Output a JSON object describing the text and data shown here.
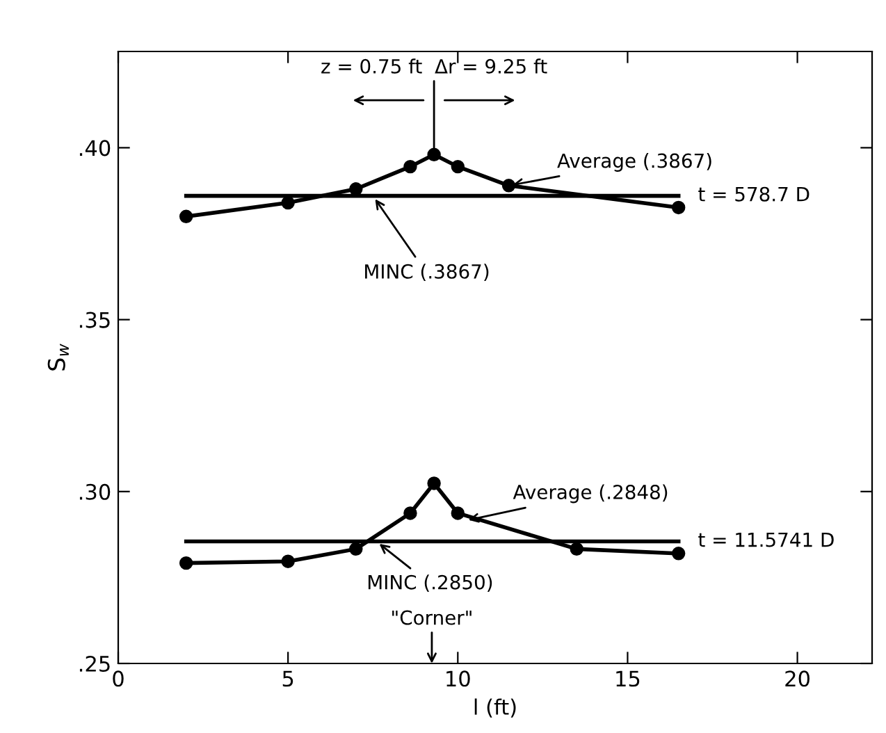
{
  "chart_data": {
    "type": "line",
    "xlabel": "l (ft)",
    "ylabel": "S$_{w}$",
    "xlim": [
      0,
      22.2
    ],
    "ylim": [
      0.25,
      0.428
    ],
    "xticks": [
      0,
      5,
      10,
      15,
      20
    ],
    "yticks": [
      {
        "value": 0.25,
        "label": ".25"
      },
      {
        "value": 0.3,
        "label": ".30"
      },
      {
        "value": 0.35,
        "label": ".35"
      },
      {
        "value": 0.4,
        "label": ".40"
      }
    ],
    "marker": "circle",
    "grid": false,
    "series": [
      {
        "color": "#000000",
        "x": [
          2.0,
          5.0,
          7.0,
          8.6,
          9.3,
          10.0,
          11.5,
          16.5
        ],
        "values": [
          0.38,
          0.384,
          0.388,
          0.3945,
          0.398,
          0.3945,
          0.389,
          0.3826
        ]
      },
      {
        "type": "line",
        "marker": "none",
        "color": "#000000",
        "x": [
          2.0,
          16.5
        ],
        "values": [
          0.386,
          0.386
        ]
      },
      {
        "color": "#000000",
        "x": [
          2.0,
          5.0,
          7.0,
          8.6,
          9.3,
          10.0,
          13.5,
          16.5
        ],
        "values": [
          0.2792,
          0.2797,
          0.2833,
          0.2937,
          0.3024,
          0.2937,
          0.2833,
          0.282
        ]
      },
      {
        "type": "line",
        "marker": "none",
        "color": "#000000",
        "x": [
          2.0,
          16.5
        ],
        "values": [
          0.2855,
          0.2855
        ]
      }
    ],
    "annotations": [
      {
        "text": "Average (.3867)",
        "x": 11.5,
        "y": 0.389
      },
      {
        "text": "MINC (.3867)",
        "x": 7.5,
        "y": 0.386
      },
      {
        "text": "t = 578.7 D",
        "x": 16.5,
        "y": 0.386
      },
      {
        "text": "Average (.2848)",
        "x": 10.2,
        "y": 0.2915
      },
      {
        "text": "MINC (.2850)",
        "x": 7.6,
        "y": 0.2855
      },
      {
        "text": "t = 11.5741 D",
        "x": 16.5,
        "y": 0.2855
      },
      {
        "text": "z = 0.75 ft  Δr = 9.25 ft",
        "x": 9.3,
        "y": 0.398
      },
      "\"Corner\""
    ]
  }
}
